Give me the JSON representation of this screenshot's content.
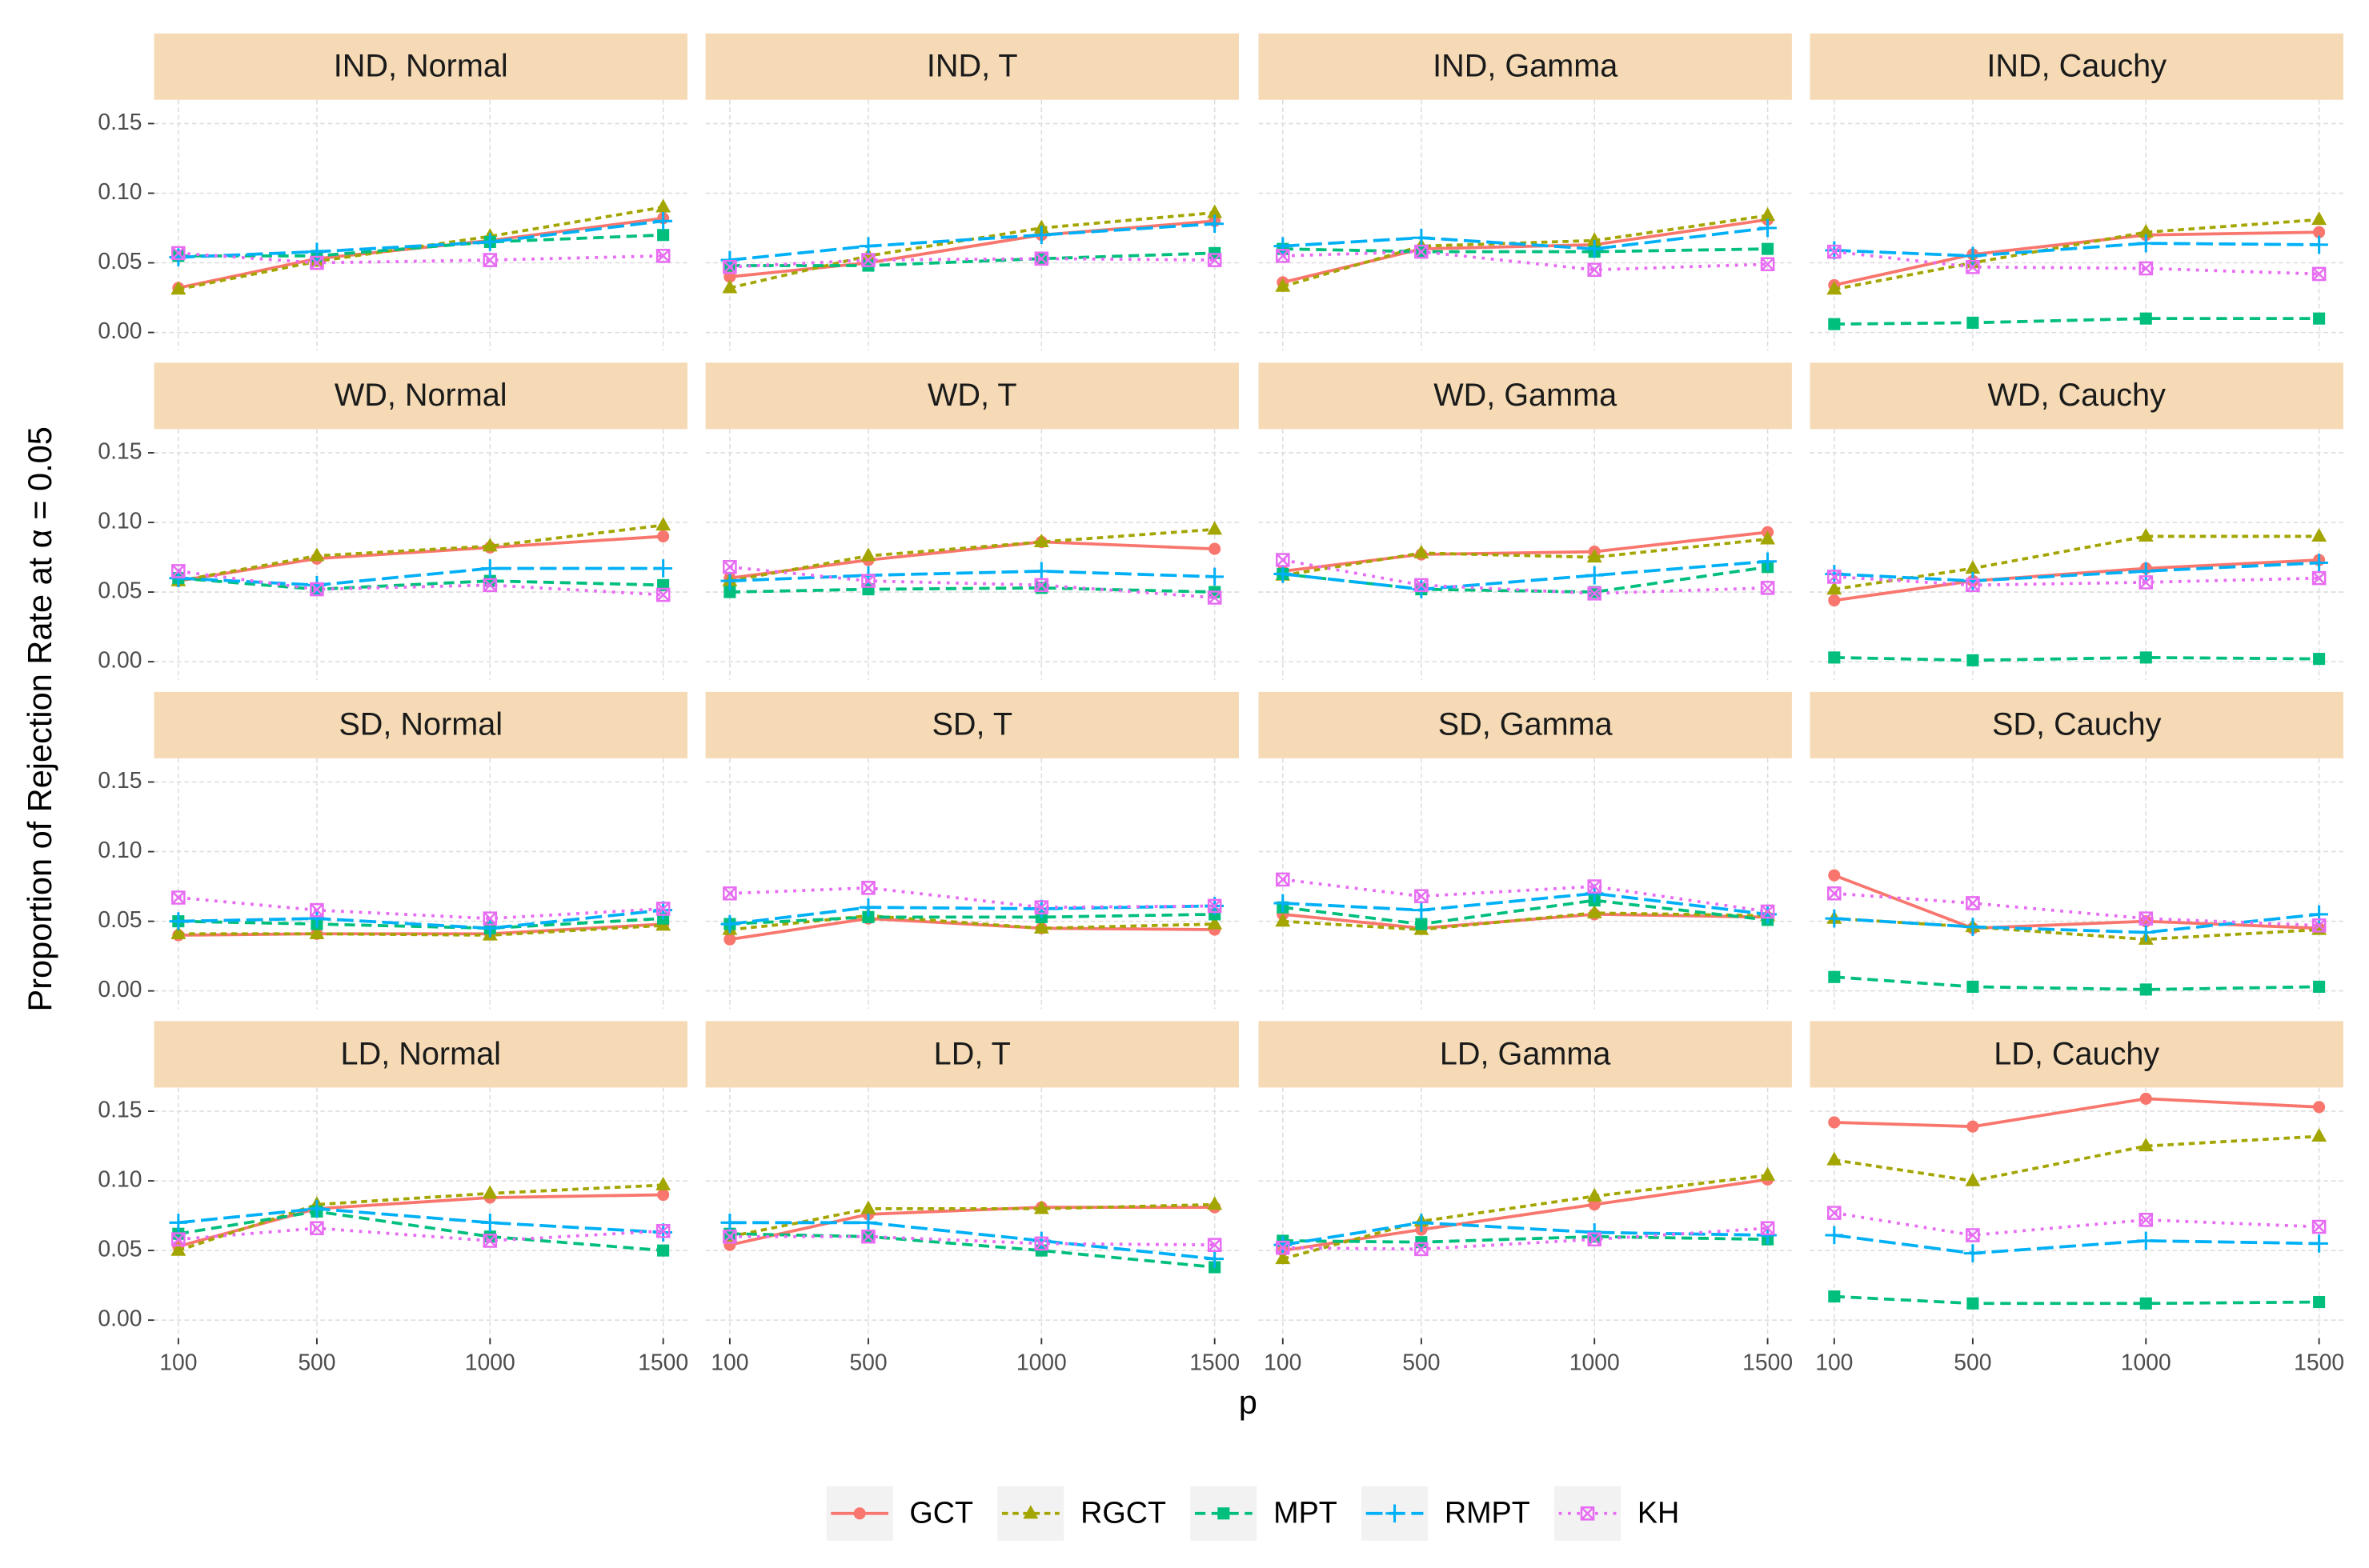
{
  "chart_data": {
    "type": "line",
    "xlabel": "p",
    "ylabel": "Proportion of Rejection Rate at α = 0.05",
    "x": [
      100,
      500,
      1000,
      1500
    ],
    "xlim": [
      30,
      1570
    ],
    "xticks": [
      100,
      500,
      1000,
      1500
    ],
    "ylim": [
      -0.013,
      0.167
    ],
    "yticks": [
      {
        "value": 0,
        "label": "0.00"
      },
      {
        "value": 0.05,
        "label": "0.05"
      },
      {
        "value": 0.1,
        "label": "0.10"
      },
      {
        "value": 0.15,
        "label": "0.15"
      }
    ],
    "grid": true,
    "legend": "bottom",
    "series": [
      {
        "name": "GCT",
        "color": "#F8766D",
        "dash": "none",
        "marker": "circle"
      },
      {
        "name": "RGCT",
        "color": "#A3A500",
        "dash": "4,3",
        "marker": "triangle"
      },
      {
        "name": "MPT",
        "color": "#00BF7D",
        "dash": "7,4",
        "marker": "square"
      },
      {
        "name": "RMPT",
        "color": "#00B0F6",
        "dash": "11,4",
        "marker": "plus"
      },
      {
        "name": "KH",
        "color": "#E76BF3",
        "dash": "2,4",
        "marker": "boxcross"
      }
    ],
    "panels": [
      {
        "title": "IND, Normal",
        "values": [
          [
            0.032,
            0.053,
            0.066,
            0.082
          ],
          [
            0.031,
            0.051,
            0.069,
            0.09
          ],
          [
            0.055,
            0.055,
            0.065,
            0.07
          ],
          [
            0.054,
            0.058,
            0.065,
            0.08
          ],
          [
            0.057,
            0.05,
            0.052,
            0.055
          ]
        ]
      },
      {
        "title": "IND, T",
        "values": [
          [
            0.04,
            0.05,
            0.07,
            0.08
          ],
          [
            0.032,
            0.055,
            0.075,
            0.086
          ],
          [
            0.048,
            0.048,
            0.053,
            0.057
          ],
          [
            0.052,
            0.062,
            0.07,
            0.078
          ],
          [
            0.047,
            0.052,
            0.053,
            0.052
          ]
        ]
      },
      {
        "title": "IND, Gamma",
        "values": [
          [
            0.036,
            0.06,
            0.063,
            0.081
          ],
          [
            0.033,
            0.062,
            0.066,
            0.084
          ],
          [
            0.06,
            0.058,
            0.058,
            0.06
          ],
          [
            0.062,
            0.068,
            0.06,
            0.075
          ],
          [
            0.055,
            0.058,
            0.045,
            0.049
          ]
        ]
      },
      {
        "title": "IND, Cauchy",
        "values": [
          [
            0.034,
            0.056,
            0.07,
            0.072
          ],
          [
            0.031,
            0.05,
            0.072,
            0.081
          ],
          [
            0.006,
            0.007,
            0.01,
            0.01
          ],
          [
            0.059,
            0.055,
            0.064,
            0.063
          ],
          [
            0.058,
            0.047,
            0.046,
            0.042
          ]
        ]
      },
      {
        "title": "WD, Normal",
        "values": [
          [
            0.058,
            0.074,
            0.082,
            0.09
          ],
          [
            0.058,
            0.076,
            0.083,
            0.098
          ],
          [
            0.06,
            0.052,
            0.058,
            0.055
          ],
          [
            0.06,
            0.055,
            0.067,
            0.067
          ],
          [
            0.065,
            0.052,
            0.055,
            0.048
          ]
        ]
      },
      {
        "title": "WD, T",
        "values": [
          [
            0.06,
            0.073,
            0.086,
            0.081
          ],
          [
            0.058,
            0.076,
            0.086,
            0.095
          ],
          [
            0.05,
            0.052,
            0.053,
            0.05
          ],
          [
            0.058,
            0.062,
            0.065,
            0.061
          ],
          [
            0.068,
            0.058,
            0.055,
            0.046
          ]
        ]
      },
      {
        "title": "WD, Gamma",
        "values": [
          [
            0.065,
            0.077,
            0.079,
            0.093
          ],
          [
            0.062,
            0.078,
            0.075,
            0.088
          ],
          [
            0.063,
            0.052,
            0.05,
            0.068
          ],
          [
            0.063,
            0.052,
            0.062,
            0.072
          ],
          [
            0.073,
            0.055,
            0.049,
            0.053
          ]
        ]
      },
      {
        "title": "WD, Cauchy",
        "values": [
          [
            0.044,
            0.058,
            0.067,
            0.073
          ],
          [
            0.052,
            0.067,
            0.09,
            0.09
          ],
          [
            0.003,
            0.001,
            0.003,
            0.002
          ],
          [
            0.063,
            0.058,
            0.065,
            0.071
          ],
          [
            0.061,
            0.055,
            0.057,
            0.06
          ]
        ]
      },
      {
        "title": "SD, Normal",
        "values": [
          [
            0.04,
            0.041,
            0.041,
            0.048
          ],
          [
            0.041,
            0.041,
            0.04,
            0.047
          ],
          [
            0.05,
            0.048,
            0.045,
            0.052
          ],
          [
            0.05,
            0.052,
            0.045,
            0.058
          ],
          [
            0.067,
            0.058,
            0.052,
            0.059
          ]
        ]
      },
      {
        "title": "SD, T",
        "values": [
          [
            0.037,
            0.052,
            0.045,
            0.044
          ],
          [
            0.044,
            0.054,
            0.045,
            0.048
          ],
          [
            0.048,
            0.053,
            0.053,
            0.055
          ],
          [
            0.048,
            0.06,
            0.059,
            0.061
          ],
          [
            0.07,
            0.074,
            0.06,
            0.061
          ]
        ]
      },
      {
        "title": "SD, Gamma",
        "values": [
          [
            0.055,
            0.045,
            0.055,
            0.053
          ],
          [
            0.05,
            0.044,
            0.056,
            0.054
          ],
          [
            0.06,
            0.048,
            0.065,
            0.051
          ],
          [
            0.063,
            0.058,
            0.07,
            0.055
          ],
          [
            0.08,
            0.068,
            0.075,
            0.057
          ]
        ]
      },
      {
        "title": "SD, Cauchy",
        "values": [
          [
            0.083,
            0.045,
            0.05,
            0.045
          ],
          [
            0.052,
            0.046,
            0.037,
            0.044
          ],
          [
            0.01,
            0.003,
            0.001,
            0.003
          ],
          [
            0.052,
            0.046,
            0.042,
            0.055
          ],
          [
            0.07,
            0.063,
            0.052,
            0.047
          ]
        ]
      },
      {
        "title": "LD, Normal",
        "values": [
          [
            0.053,
            0.08,
            0.088,
            0.09
          ],
          [
            0.05,
            0.083,
            0.091,
            0.097
          ],
          [
            0.062,
            0.078,
            0.06,
            0.05
          ],
          [
            0.07,
            0.08,
            0.07,
            0.063
          ],
          [
            0.058,
            0.066,
            0.057,
            0.064
          ]
        ]
      },
      {
        "title": "LD, T",
        "values": [
          [
            0.054,
            0.076,
            0.081,
            0.081
          ],
          [
            0.06,
            0.08,
            0.08,
            0.083
          ],
          [
            0.062,
            0.06,
            0.05,
            0.038
          ],
          [
            0.07,
            0.07,
            0.057,
            0.044
          ],
          [
            0.06,
            0.06,
            0.055,
            0.054
          ]
        ]
      },
      {
        "title": "LD, Gamma",
        "values": [
          [
            0.05,
            0.065,
            0.083,
            0.101
          ],
          [
            0.044,
            0.071,
            0.089,
            0.104
          ],
          [
            0.057,
            0.056,
            0.06,
            0.058
          ],
          [
            0.054,
            0.07,
            0.063,
            0.061
          ],
          [
            0.052,
            0.051,
            0.058,
            0.066
          ]
        ]
      },
      {
        "title": "LD, Cauchy",
        "values": [
          [
            0.142,
            0.139,
            0.159,
            0.153
          ],
          [
            0.115,
            0.1,
            0.125,
            0.132
          ],
          [
            0.017,
            0.012,
            0.012,
            0.013
          ],
          [
            0.061,
            0.048,
            0.057,
            0.055
          ],
          [
            0.077,
            0.061,
            0.072,
            0.067
          ]
        ]
      }
    ]
  }
}
